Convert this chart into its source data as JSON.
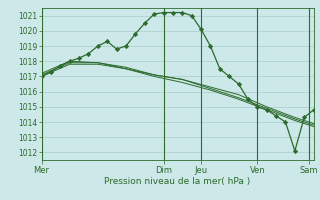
{
  "title": "",
  "xlabel": "Pression niveau de la mer( hPa )",
  "bg_color": "#cce8e8",
  "grid_color": "#aacccc",
  "line_color": "#2d6a2d",
  "ylim": [
    1011.5,
    1021.5
  ],
  "yticks": [
    1012,
    1013,
    1014,
    1015,
    1016,
    1017,
    1018,
    1019,
    1020,
    1021
  ],
  "day_labels": [
    "Mer",
    "Dim",
    "Jeu",
    "Ven",
    "Sam"
  ],
  "day_positions": [
    0,
    13,
    17,
    23,
    28.5
  ],
  "line1_x": [
    0,
    1,
    2,
    3,
    4,
    5,
    6,
    7,
    8,
    9,
    10,
    11,
    12,
    13,
    14,
    15,
    16,
    17,
    18,
    19,
    20,
    21,
    22,
    23,
    24,
    25,
    26,
    27,
    28,
    29
  ],
  "line1_y": [
    1017.0,
    1017.3,
    1017.7,
    1018.0,
    1018.2,
    1018.5,
    1019.0,
    1019.3,
    1018.8,
    1019.0,
    1019.8,
    1020.5,
    1021.1,
    1021.2,
    1021.2,
    1021.2,
    1021.0,
    1020.1,
    1019.0,
    1017.5,
    1017.0,
    1016.5,
    1015.5,
    1015.0,
    1014.8,
    1014.4,
    1014.0,
    1012.1,
    1014.3,
    1014.8
  ],
  "line2_x": [
    0,
    3,
    6,
    9,
    12,
    15,
    18,
    21,
    24,
    27,
    29
  ],
  "line2_y": [
    1017.2,
    1018.0,
    1017.9,
    1017.6,
    1017.1,
    1016.8,
    1016.3,
    1015.8,
    1015.0,
    1014.3,
    1013.9
  ],
  "line3_x": [
    0,
    3,
    6,
    9,
    12,
    15,
    18,
    21,
    24,
    27,
    29
  ],
  "line3_y": [
    1017.0,
    1017.8,
    1017.8,
    1017.5,
    1017.1,
    1016.8,
    1016.2,
    1015.6,
    1014.9,
    1014.2,
    1013.8
  ],
  "line4_x": [
    0,
    3,
    6,
    9,
    12,
    15,
    18,
    21,
    24,
    27,
    29
  ],
  "line4_y": [
    1017.1,
    1017.9,
    1017.9,
    1017.5,
    1017.0,
    1016.6,
    1016.1,
    1015.5,
    1014.8,
    1014.1,
    1013.7
  ],
  "n_points": 30,
  "xlim": [
    0,
    29
  ]
}
